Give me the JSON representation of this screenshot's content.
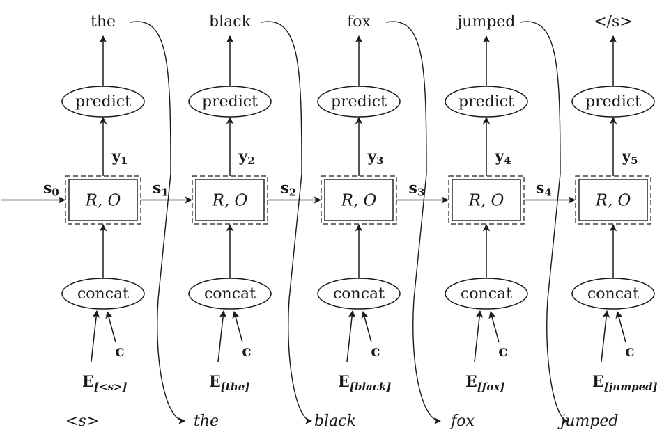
{
  "columns": [
    {
      "output": "the",
      "y_var": "y",
      "y_sub": "1",
      "embed_letter": "E",
      "embed_sub": "[<s>]",
      "input": "<s>"
    },
    {
      "output": "black",
      "y_var": "y",
      "y_sub": "2",
      "embed_letter": "E",
      "embed_sub": "[the]",
      "input": "the"
    },
    {
      "output": "fox",
      "y_var": "y",
      "y_sub": "3",
      "embed_letter": "E",
      "embed_sub": "[black]",
      "input": "black"
    },
    {
      "output": "jumped",
      "y_var": "y",
      "y_sub": "4",
      "embed_letter": "E",
      "embed_sub": "[fox]",
      "input": "fox"
    },
    {
      "output": "</s>",
      "y_var": "y",
      "y_sub": "5",
      "embed_letter": "E",
      "embed_sub": "[jumped]",
      "input": "jumped"
    }
  ],
  "states": [
    {
      "var": "s",
      "sub": "0"
    },
    {
      "var": "s",
      "sub": "1"
    },
    {
      "var": "s",
      "sub": "2"
    },
    {
      "var": "s",
      "sub": "3"
    },
    {
      "var": "s",
      "sub": "4"
    }
  ],
  "labels": {
    "predict": "predict",
    "concat": "concat",
    "box": "R, O",
    "context": "c"
  },
  "colors": {
    "stroke": "#1a1a1a",
    "background": "#ffffff"
  }
}
